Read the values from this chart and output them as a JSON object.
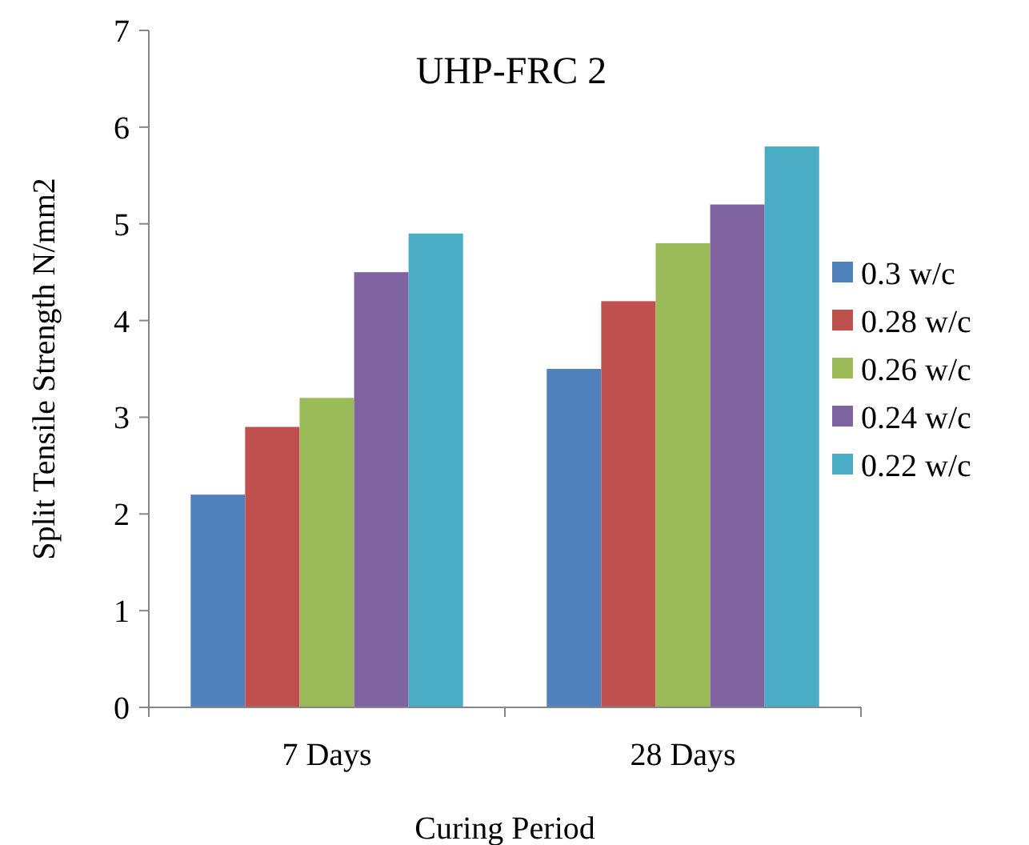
{
  "chart_data": {
    "type": "bar",
    "title": "UHP-FRC 2",
    "xlabel": "Curing Period",
    "ylabel": "Split Tensile Strength N/mm2",
    "categories": [
      "7 Days",
      "28 Days"
    ],
    "series": [
      {
        "name": "0.3 w/c",
        "color": "#4f81bd",
        "values": [
          2.2,
          3.5
        ]
      },
      {
        "name": "0.28 w/c",
        "color": "#c0504d",
        "values": [
          2.9,
          4.2
        ]
      },
      {
        "name": "0.26 w/c",
        "color": "#9bbb59",
        "values": [
          3.2,
          4.8
        ]
      },
      {
        "name": "0.24 w/c",
        "color": "#8064a2",
        "values": [
          4.5,
          5.2
        ]
      },
      {
        "name": "0.22 w/c",
        "color": "#4bacc6",
        "values": [
          4.9,
          5.8
        ]
      }
    ],
    "ylim": [
      0,
      7
    ],
    "yticks": [
      0,
      1,
      2,
      3,
      4,
      5,
      6,
      7
    ],
    "grid": false,
    "legend": "right"
  }
}
